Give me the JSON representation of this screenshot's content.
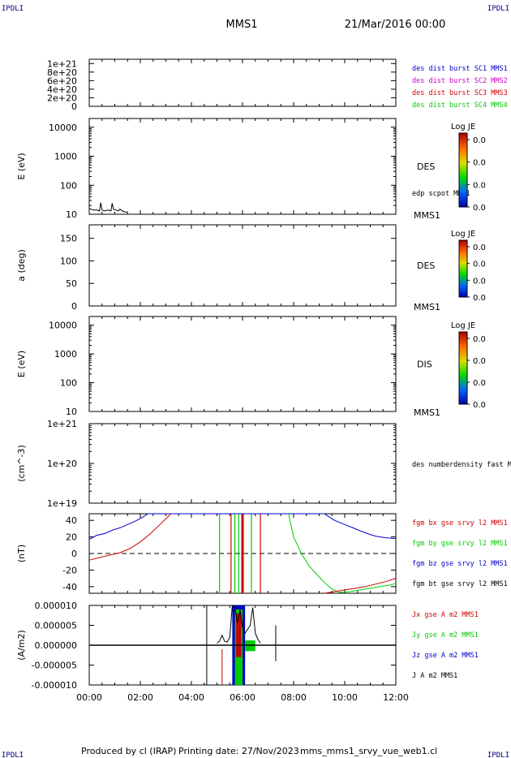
{
  "header": {
    "corner_tl": "IPDLI",
    "corner_tr": "IPDLI",
    "corner_bl": "IPDLI",
    "corner_br": "IPDLI",
    "spacecraft": "MMS1",
    "date": "21/Mar/2016 00:00"
  },
  "footer": {
    "produced_by": "Produced by cl (IRAP)",
    "printing_date": "Printing date: 27/Nov/2023",
    "script": "mms_mms1_srvy_vue_web1.cl"
  },
  "colors": {
    "black": "#000000",
    "blue": "#0000cc",
    "red": "#cc0000",
    "green": "#00cc00",
    "magenta": "#cc00cc",
    "navy": "#000080"
  },
  "chart_data": [
    {
      "id": "panel1",
      "type": "line",
      "ylim": [
        0,
        1.1e+21
      ],
      "ytick_values": [
        0,
        2e+20,
        4e+20,
        6e+20,
        8e+20,
        1e+21
      ],
      "ytick_labels": [
        "0",
        "2e+20",
        "4e+20",
        "6e+20",
        "8e+20",
        "1e+21"
      ],
      "ylabel": "",
      "reference_line_y": 0,
      "legend": [
        {
          "text": "des dist burst SC1 MMS1",
          "color": "#0000cc"
        },
        {
          "text": "des dist burst SC2 MMS2",
          "color": "#cc00cc"
        },
        {
          "text": "des dist burst SC3 MMS3",
          "color": "#cc0000"
        },
        {
          "text": "des dist burst SC4 MMS4",
          "color": "#00cc00"
        }
      ]
    },
    {
      "id": "panel2",
      "type": "line",
      "scale": "log",
      "ylim": [
        10,
        20000
      ],
      "ytick_values": [
        10,
        100,
        1000,
        10000
      ],
      "ytick_labels": [
        "10",
        "100",
        "1000",
        "10000"
      ],
      "ylabel": "E (eV)",
      "species_label": "DES",
      "overlay_label": "edp scpot MMS1",
      "bottom_label": "MMS1",
      "colorbar": {
        "title": "Log JE",
        "tick_labels": [
          "0.0",
          "0.0",
          "0.0",
          "0.0"
        ]
      },
      "series": [
        {
          "color": "#000000",
          "x": [
            0.0,
            0.15,
            0.3,
            0.4,
            0.45,
            0.5,
            0.6,
            0.75,
            0.85,
            0.9,
            0.95,
            1.05,
            1.15,
            1.2,
            1.3,
            1.4,
            1.5
          ],
          "y": [
            16,
            14,
            14,
            13,
            25,
            14,
            13,
            14,
            13,
            24,
            15,
            14,
            13,
            15,
            13,
            12,
            12
          ]
        }
      ]
    },
    {
      "id": "panel3",
      "type": "heatmap",
      "ylim": [
        0,
        180
      ],
      "ytick_values": [
        0,
        50,
        100,
        150
      ],
      "ytick_labels": [
        "0",
        "50",
        "100",
        "150"
      ],
      "ylabel": "a (deg)",
      "species_label": "DES",
      "bottom_label": "MMS1",
      "colorbar": {
        "title": "Log JE",
        "tick_labels": [
          "0.0",
          "0.0",
          "0.0",
          "0.0"
        ]
      }
    },
    {
      "id": "panel4",
      "type": "heatmap",
      "scale": "log",
      "ylim": [
        10,
        20000
      ],
      "ytick_values": [
        10,
        100,
        1000,
        10000
      ],
      "ytick_labels": [
        "10",
        "100",
        "1000",
        "10000"
      ],
      "ylabel": "E (eV)",
      "species_label": "DIS",
      "bottom_label": "MMS1",
      "colorbar": {
        "title": "Log JE",
        "tick_labels": [
          "0.0",
          "0.0",
          "0.0",
          "0.0"
        ]
      }
    },
    {
      "id": "panel5",
      "type": "line",
      "scale": "log",
      "ylim": [
        1e+19,
        1e+21
      ],
      "ytick_values": [
        1e+19,
        1e+20,
        1e+21
      ],
      "ytick_labels": [
        "1e+19",
        "1e+20",
        "1e+21"
      ],
      "ylabel": "(cm^-3)",
      "legend": [
        {
          "text": "des numberdensity fast M",
          "color": "#000000"
        }
      ]
    },
    {
      "id": "panel6",
      "type": "line",
      "ylim": [
        -48,
        48
      ],
      "ytick_values": [
        -40,
        -20,
        0,
        20,
        40
      ],
      "ytick_labels": [
        "-40",
        "-20",
        "0",
        "20",
        "40"
      ],
      "ylabel": "(nT)",
      "reference_line_y": 0,
      "legend": [
        {
          "text": "fgm bx gse srvy l2 MMS1",
          "color": "#cc0000"
        },
        {
          "text": "fgm by gse srvy l2 MMS1",
          "color": "#00cc00"
        },
        {
          "text": "fgm bz gse srvy l2 MMS1",
          "color": "#0000cc"
        },
        {
          "text": "fgm bt gse srvy l2 MMS1",
          "color": "#000000"
        }
      ],
      "series": [
        {
          "name": "fgm bz gse srvy l2 MMS1",
          "color": "#0000cc",
          "x": [
            0.0,
            0.3,
            0.6,
            0.9,
            1.2,
            1.5,
            1.8,
            2.1,
            2.3,
            9.2,
            9.6,
            10.0,
            10.4,
            10.8,
            11.2,
            11.6,
            12.0
          ],
          "y": [
            17,
            22,
            24,
            28,
            31,
            35,
            39,
            44,
            48,
            48,
            40,
            35,
            30,
            25,
            21,
            19,
            18
          ]
        },
        {
          "name": "fgm bx gse srvy l2 MMS1",
          "color": "#cc0000",
          "x": [
            0.0,
            0.4,
            0.8,
            1.2,
            1.6,
            2.0,
            2.4,
            2.8,
            3.1,
            3.2
          ],
          "y": [
            -8,
            -5,
            -2,
            1,
            6,
            14,
            24,
            36,
            45,
            48
          ]
        },
        {
          "name": "fgm by gse srvy l2 MMS1",
          "color": "#00cc00",
          "x": [
            7.8,
            8.0,
            8.3,
            8.6,
            8.9,
            9.2,
            9.5,
            9.8,
            10.2,
            10.6,
            11.0,
            11.4,
            11.8,
            12.0
          ],
          "y": [
            48,
            20,
            0,
            -15,
            -25,
            -35,
            -43,
            -47,
            -46,
            -44,
            -42,
            -40,
            -38,
            -36
          ]
        },
        {
          "name": "fgm bx gse srvy l2 MMS1",
          "color": "#cc0000",
          "x": [
            9.2,
            9.6,
            10.0,
            10.4,
            10.8,
            11.2,
            11.6,
            12.0
          ],
          "y": [
            -48,
            -46,
            -44,
            -42,
            -40,
            -37,
            -34,
            -30
          ]
        }
      ],
      "vertical_lines": [
        {
          "x": 5.1,
          "color": "#00cc00"
        },
        {
          "x": 5.55,
          "color": "#cc0000"
        },
        {
          "x": 5.7,
          "color": "#00cc00"
        },
        {
          "x": 5.85,
          "color": "#00cc00"
        },
        {
          "x": 6.0,
          "color": "#cc0000"
        },
        {
          "x": 6.35,
          "color": "#00cc00"
        },
        {
          "x": 6.7,
          "color": "#cc0000"
        }
      ]
    },
    {
      "id": "panel7",
      "type": "line",
      "ylim": [
        -1e-05,
        1e-05
      ],
      "ytick_values": [
        -1e-05,
        -5e-06,
        0.0,
        5e-06,
        1e-05
      ],
      "ytick_labels": [
        "-0.000010",
        "-0.000005",
        "0.000000",
        "0.000005",
        "0.000010"
      ],
      "ylabel": "(A/m2)",
      "x_range": [
        0,
        12
      ],
      "xtick_values": [
        0,
        2,
        4,
        6,
        8,
        10,
        12
      ],
      "xtick_labels": [
        "00:00",
        "02:00",
        "04:00",
        "06:00",
        "08:00",
        "10:00",
        "12:00"
      ],
      "legend": [
        {
          "text": "Jx gse A m2 MMS1",
          "color": "#cc0000"
        },
        {
          "text": "Jy gse A m2 MMS1",
          "color": "#00cc00"
        },
        {
          "text": "Jz gse A m2 MMS1",
          "color": "#0000cc"
        },
        {
          "text": "J A m2 MMS1",
          "color": "#000000"
        }
      ],
      "baseline_y": 0.0,
      "spike_lines": [
        {
          "x": 4.6,
          "y1": -1e-05,
          "y2": 1e-05,
          "color": "#000000"
        },
        {
          "x": 5.2,
          "y1": -1e-05,
          "y2": -1e-06,
          "color": "#cc0000"
        },
        {
          "x": 7.3,
          "y1": -4e-06,
          "y2": 5e-06,
          "color": "#000000"
        }
      ],
      "burst_blocks": [
        {
          "x0": 5.6,
          "x1": 6.1,
          "y0": -1e-05,
          "y1": 1e-05,
          "color": "#0000cc"
        },
        {
          "x0": 5.7,
          "x1": 6.0,
          "y0": -1e-05,
          "y1": 9e-06,
          "color": "#00cc00"
        },
        {
          "x0": 5.75,
          "x1": 5.95,
          "y0": -3e-06,
          "y1": 8e-06,
          "color": "#cc0000"
        },
        {
          "x0": 6.1,
          "x1": 6.5,
          "y0": -1.5e-06,
          "y1": 1.2e-06,
          "color": "#00cc00"
        }
      ],
      "magnitude_series": {
        "color": "#000000",
        "x": [
          5.0,
          5.1,
          5.2,
          5.3,
          5.4,
          5.5,
          5.6,
          5.7,
          5.8,
          5.9,
          6.0,
          6.1,
          6.2,
          6.3,
          6.4,
          6.5,
          6.6,
          6.7
        ],
        "y": [
          5e-07,
          1e-06,
          2.5e-06,
          1e-06,
          8e-07,
          2e-06,
          1e-05,
          9.5e-06,
          5.5e-06,
          9e-06,
          4.5e-06,
          3e-06,
          4e-06,
          5e-06,
          9.5e-06,
          3e-06,
          1.5e-06,
          5e-07
        ]
      }
    }
  ]
}
